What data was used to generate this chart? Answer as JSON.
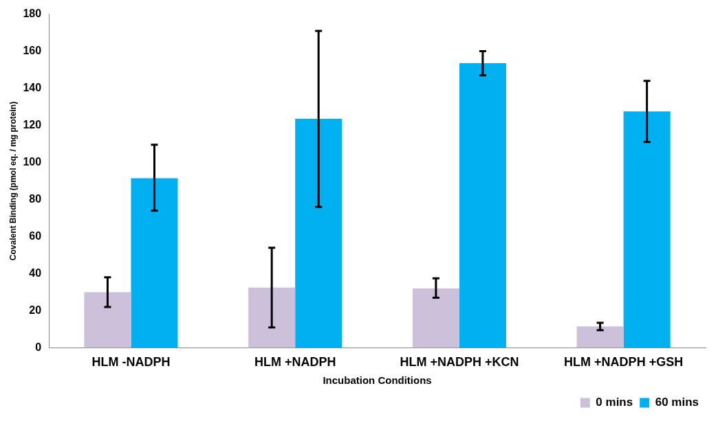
{
  "chart_data": {
    "type": "bar",
    "xlabel": "Incubation Conditions",
    "ylabel": "Covalent Binding (pmol eq. / mg protein)",
    "categories": [
      "HLM -NADPH",
      "HLM +NADPH",
      "HLM +NADPH +KCN",
      "HLM +NADPH +GSH"
    ],
    "series": [
      {
        "name": "0 mins",
        "color": "#ccc0da",
        "values": [
          30,
          32.5,
          32,
          11.5
        ],
        "errors": [
          [
            22,
            38
          ],
          [
            11,
            54
          ],
          [
            27,
            37.5
          ],
          [
            9.5,
            13.5
          ]
        ]
      },
      {
        "name": "60 mins",
        "color": "#00b0f0",
        "values": [
          91.5,
          123.5,
          153.5,
          127.5
        ],
        "errors": [
          [
            74,
            109.5
          ],
          [
            76,
            171
          ],
          [
            147,
            160
          ],
          [
            111,
            144
          ]
        ]
      }
    ],
    "ylim": [
      0,
      180
    ],
    "yticks": [
      0,
      20,
      40,
      60,
      80,
      100,
      120,
      140,
      160,
      180
    ],
    "grid": false,
    "legend": "bottom right"
  }
}
